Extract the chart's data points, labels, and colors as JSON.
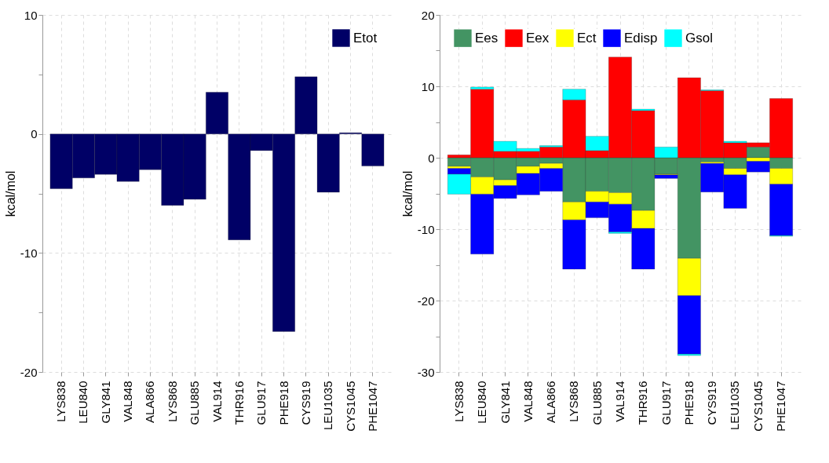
{
  "chart_data": [
    {
      "type": "bar",
      "categories": [
        "LYS838",
        "LEU840",
        "GLY841",
        "VAL848",
        "ALA866",
        "LYS868",
        "GLU885",
        "VAL914",
        "THR916",
        "GLU917",
        "PHE918",
        "CYS919",
        "LEU1035",
        "CYS1045",
        "PHE1047"
      ],
      "series": [
        {
          "name": "Etot",
          "color": "#000066",
          "values": [
            -4.6,
            -3.7,
            -3.4,
            -4.0,
            -3.0,
            -6.0,
            -5.5,
            3.5,
            -8.9,
            -1.4,
            -16.6,
            4.8,
            -4.9,
            0.1,
            -2.7
          ]
        }
      ],
      "ylabel": "kcal/mol",
      "ylim": [
        -20,
        10
      ],
      "yticks": [
        -20,
        {
          "value": -15,
          "label": null
        },
        -10,
        {
          "value": -5,
          "label": null
        },
        0,
        {
          "value": 5,
          "label": null
        },
        10
      ],
      "grid": true,
      "legend": "top right"
    },
    {
      "type": "bar",
      "stacked": true,
      "categories": [
        "LYS838",
        "LEU840",
        "GLY841",
        "VAL848",
        "ALA866",
        "LYS868",
        "GLU885",
        "VAL914",
        "THR916",
        "GLU917",
        "PHE918",
        "CYS919",
        "LEU1035",
        "CYS1045",
        "PHE1047"
      ],
      "series": [
        {
          "name": "Ees",
          "color": "#439463",
          "values": [
            -1.2,
            -2.7,
            -3.1,
            -1.2,
            -0.8,
            -6.2,
            -4.7,
            -4.9,
            -7.4,
            -2.3,
            -14.1,
            -0.6,
            -1.5,
            1.5,
            -1.5
          ]
        },
        {
          "name": "Eex",
          "color": "#ff0000",
          "values": [
            0.4,
            9.6,
            0.9,
            0.9,
            1.5,
            8.1,
            1.0,
            14.1,
            6.6,
            null,
            11.2,
            9.4,
            2.1,
            0.6,
            8.3
          ]
        },
        {
          "name": "Ect",
          "color": "#ffff00",
          "values": [
            -0.3,
            -2.4,
            -0.8,
            -1.0,
            -0.7,
            -2.5,
            -1.5,
            -1.6,
            -2.5,
            -0.1,
            -5.2,
            -0.2,
            -0.9,
            -0.5,
            -2.2
          ]
        },
        {
          "name": "Edisp",
          "color": "#0000ff",
          "values": [
            -0.8,
            -8.4,
            -1.8,
            -3.0,
            -3.2,
            -6.9,
            -2.2,
            -3.9,
            -5.7,
            -0.5,
            -8.2,
            -4.0,
            -4.7,
            -1.5,
            -7.2
          ]
        },
        {
          "name": "Gsol",
          "color": "#00ffff",
          "values": [
            -2.8,
            0.3,
            1.4,
            0.4,
            0.2,
            1.5,
            2.0,
            -0.2,
            0.2,
            1.5,
            -0.2,
            0.1,
            0.2,
            null,
            -0.1
          ]
        }
      ],
      "ylabel": "kcal/mol",
      "ylim": [
        -30,
        20
      ],
      "yticks": [
        -30,
        {
          "value": -25,
          "label": null
        },
        -20,
        {
          "value": -15,
          "label": null
        },
        -10,
        {
          "value": -5,
          "label": null
        },
        0,
        {
          "value": 5,
          "label": null
        },
        10,
        {
          "value": 15,
          "label": null
        },
        20
      ],
      "grid": true,
      "legend": "top left"
    }
  ]
}
